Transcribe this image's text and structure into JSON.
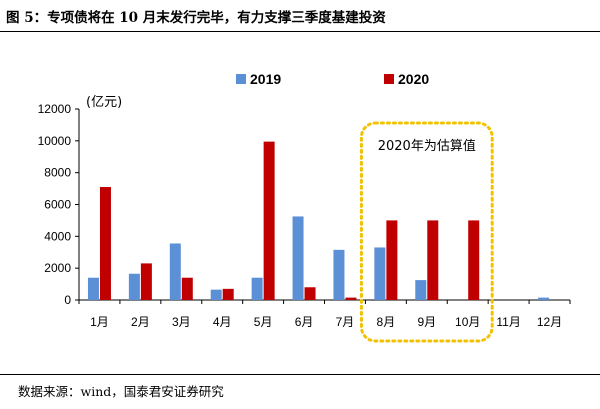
{
  "title": "图 5：专项债将在 10 月末发行完毕，有力支撑三季度基建投资",
  "source": "数据来源：wind，国泰君安证券研究",
  "chart_data": {
    "type": "bar",
    "categories": [
      "1月",
      "2月",
      "3月",
      "4月",
      "5月",
      "6月",
      "7月",
      "8月",
      "9月",
      "10月",
      "11月",
      "12月"
    ],
    "series": [
      {
        "name": "2019",
        "color": "#5b8fd6",
        "values": [
          1400,
          1650,
          3550,
          650,
          1400,
          5250,
          3150,
          3300,
          1250,
          0,
          0,
          150
        ]
      },
      {
        "name": "2020",
        "color": "#c00000",
        "values": [
          7100,
          2300,
          1400,
          700,
          9950,
          800,
          150,
          5000,
          5000,
          5000,
          0,
          0
        ]
      }
    ],
    "ylim": [
      0,
      12000
    ],
    "yticks": [
      0,
      2000,
      4000,
      6000,
      8000,
      10000,
      12000
    ],
    "ylabel": "(亿元)",
    "annotation": {
      "text": "2020年为估算值",
      "categories": [
        "8月",
        "9月",
        "10月"
      ],
      "color": "#f2c200"
    },
    "legend_position": "top-center",
    "grid": false
  }
}
